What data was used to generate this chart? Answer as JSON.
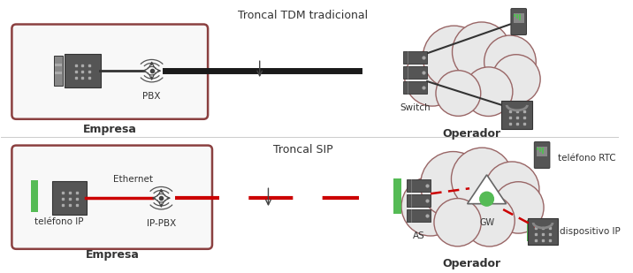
{
  "bg_color": "#ffffff",
  "title_top": "Troncal TDM tradicional",
  "title_bottom": "Troncal SIP",
  "label_empresa_top": "Empresa",
  "label_operador_top": "Operador",
  "label_empresa_bot": "Empresa",
  "label_operador_bot": "Operador",
  "label_pbx": "PBX",
  "label_ippbx": "IP-PBX",
  "label_switch": "Switch",
  "label_as": "AS",
  "label_gw": "GW",
  "label_ethernet": "Ethernet",
  "label_telefono_ip": "teléfono IP",
  "label_telefono_rtc": "teléfono RTC",
  "label_dispositivo_ip": "dispositivo IP",
  "trunk_line_color": "#1a1a1a",
  "sip_line_color": "#cc0000",
  "box_edge_color": "#8B4040",
  "dark_gray": "#555555",
  "server_color": "#555555",
  "green_color": "#55bb55",
  "cloud_edge": "#996666"
}
